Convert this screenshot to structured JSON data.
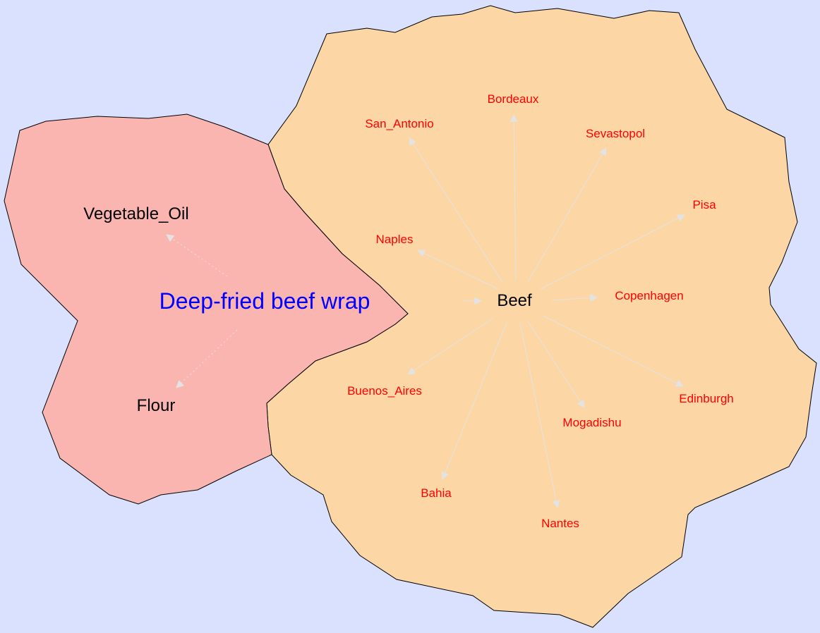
{
  "colors": {
    "background": "#d9e1ff",
    "dish_region": "#fbb5b1",
    "beef_region": "#fcd6a5",
    "dish_label": "#0000ff",
    "ingredient_label": "#000000",
    "city_label": "#ff0000",
    "edge": "#e3e3e3"
  },
  "dish": {
    "label": "Deep-fried beef wrap"
  },
  "ingredients": [
    {
      "id": "vegetable-oil",
      "label": "Vegetable_Oil"
    },
    {
      "id": "flour",
      "label": "Flour"
    },
    {
      "id": "beef",
      "label": "Beef"
    }
  ],
  "cities": [
    {
      "id": "bordeaux",
      "label": "Bordeaux"
    },
    {
      "id": "san-antonio",
      "label": "San_Antonio"
    },
    {
      "id": "sevastopol",
      "label": "Sevastopol"
    },
    {
      "id": "pisa",
      "label": "Pisa"
    },
    {
      "id": "naples",
      "label": "Naples"
    },
    {
      "id": "copenhagen",
      "label": "Copenhagen"
    },
    {
      "id": "buenos-aires",
      "label": "Buenos_Aires"
    },
    {
      "id": "edinburgh",
      "label": "Edinburgh"
    },
    {
      "id": "mogadishu",
      "label": "Mogadishu"
    },
    {
      "id": "bahia",
      "label": "Bahia"
    },
    {
      "id": "nantes",
      "label": "Nantes"
    }
  ],
  "edges": [
    {
      "from": "dish",
      "to": "vegetable-oil",
      "style": "dotted"
    },
    {
      "from": "dish",
      "to": "flour",
      "style": "dotted"
    },
    {
      "from": "dish",
      "to": "beef",
      "style": "solid"
    },
    {
      "from": "beef",
      "to": "bordeaux",
      "style": "solid"
    },
    {
      "from": "beef",
      "to": "san-antonio",
      "style": "solid"
    },
    {
      "from": "beef",
      "to": "sevastopol",
      "style": "solid"
    },
    {
      "from": "beef",
      "to": "pisa",
      "style": "solid"
    },
    {
      "from": "beef",
      "to": "naples",
      "style": "solid"
    },
    {
      "from": "beef",
      "to": "copenhagen",
      "style": "solid"
    },
    {
      "from": "beef",
      "to": "buenos-aires",
      "style": "solid"
    },
    {
      "from": "beef",
      "to": "edinburgh",
      "style": "solid"
    },
    {
      "from": "beef",
      "to": "mogadishu",
      "style": "solid"
    },
    {
      "from": "beef",
      "to": "bahia",
      "style": "solid"
    },
    {
      "from": "beef",
      "to": "nantes",
      "style": "solid"
    }
  ]
}
